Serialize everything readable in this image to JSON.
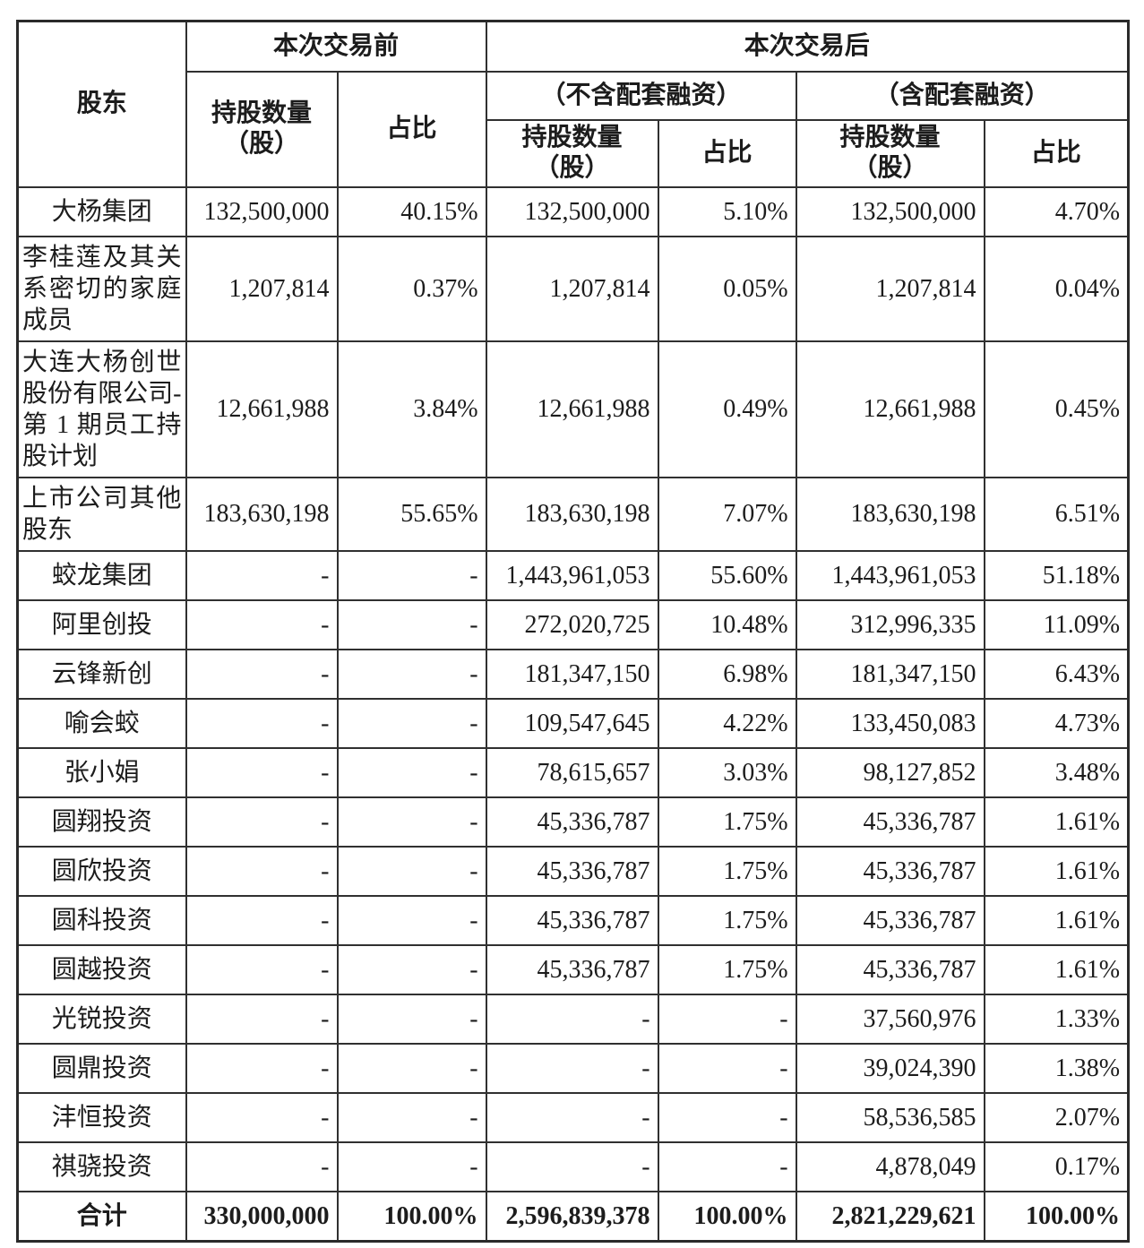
{
  "document": {
    "table": {
      "columns": {
        "shareholder": "股东",
        "before": {
          "title": "本次交易前",
          "shares": "持股数量\n（股）",
          "ratio": "占比"
        },
        "after": {
          "title": "本次交易后",
          "excluding": {
            "title": "（不含配套融资）",
            "shares": "持股数量\n（股）",
            "ratio": "占比"
          },
          "including": {
            "title": "（含配套融资）",
            "shares": "持股数量\n（股）",
            "ratio": "占比"
          }
        }
      },
      "rows": [
        {
          "name": "大杨集团",
          "justify": false,
          "values": [
            "132,500,000",
            "40.15%",
            "132,500,000",
            "5.10%",
            "132,500,000",
            "4.70%"
          ]
        },
        {
          "name": "李桂莲及其关系密切的家庭成员",
          "justify": true,
          "values": [
            "1,207,814",
            "0.37%",
            "1,207,814",
            "0.05%",
            "1,207,814",
            "0.04%"
          ]
        },
        {
          "name": "大连大杨创世股份有限公司-第 1 期员工持股计划",
          "justify": true,
          "values": [
            "12,661,988",
            "3.84%",
            "12,661,988",
            "0.49%",
            "12,661,988",
            "0.45%"
          ]
        },
        {
          "name": "上市公司其他股东",
          "justify": true,
          "values": [
            "183,630,198",
            "55.65%",
            "183,630,198",
            "7.07%",
            "183,630,198",
            "6.51%"
          ]
        },
        {
          "name": "蛟龙集团",
          "justify": false,
          "values": [
            "-",
            "-",
            "1,443,961,053",
            "55.60%",
            "1,443,961,053",
            "51.18%"
          ]
        },
        {
          "name": "阿里创投",
          "justify": false,
          "values": [
            "-",
            "-",
            "272,020,725",
            "10.48%",
            "312,996,335",
            "11.09%"
          ]
        },
        {
          "name": "云锋新创",
          "justify": false,
          "values": [
            "-",
            "-",
            "181,347,150",
            "6.98%",
            "181,347,150",
            "6.43%"
          ]
        },
        {
          "name": "喻会蛟",
          "justify": false,
          "values": [
            "-",
            "-",
            "109,547,645",
            "4.22%",
            "133,450,083",
            "4.73%"
          ]
        },
        {
          "name": "张小娟",
          "justify": false,
          "values": [
            "-",
            "-",
            "78,615,657",
            "3.03%",
            "98,127,852",
            "3.48%"
          ]
        },
        {
          "name": "圆翔投资",
          "justify": false,
          "values": [
            "-",
            "-",
            "45,336,787",
            "1.75%",
            "45,336,787",
            "1.61%"
          ]
        },
        {
          "name": "圆欣投资",
          "justify": false,
          "values": [
            "-",
            "-",
            "45,336,787",
            "1.75%",
            "45,336,787",
            "1.61%"
          ]
        },
        {
          "name": "圆科投资",
          "justify": false,
          "values": [
            "-",
            "-",
            "45,336,787",
            "1.75%",
            "45,336,787",
            "1.61%"
          ]
        },
        {
          "name": "圆越投资",
          "justify": false,
          "values": [
            "-",
            "-",
            "45,336,787",
            "1.75%",
            "45,336,787",
            "1.61%"
          ]
        },
        {
          "name": "光锐投资",
          "justify": false,
          "values": [
            "-",
            "-",
            "-",
            "-",
            "37,560,976",
            "1.33%"
          ]
        },
        {
          "name": "圆鼎投资",
          "justify": false,
          "values": [
            "-",
            "-",
            "-",
            "-",
            "39,024,390",
            "1.38%"
          ]
        },
        {
          "name": "沣恒投资",
          "justify": false,
          "values": [
            "-",
            "-",
            "-",
            "-",
            "58,536,585",
            "2.07%"
          ]
        },
        {
          "name": "祺骁投资",
          "justify": false,
          "values": [
            "-",
            "-",
            "-",
            "-",
            "4,878,049",
            "0.17%"
          ]
        }
      ],
      "total": {
        "name": "合计",
        "values": [
          "330,000,000",
          "100.00%",
          "2,596,839,378",
          "100.00%",
          "2,821,229,621",
          "100.00%"
        ]
      }
    }
  }
}
